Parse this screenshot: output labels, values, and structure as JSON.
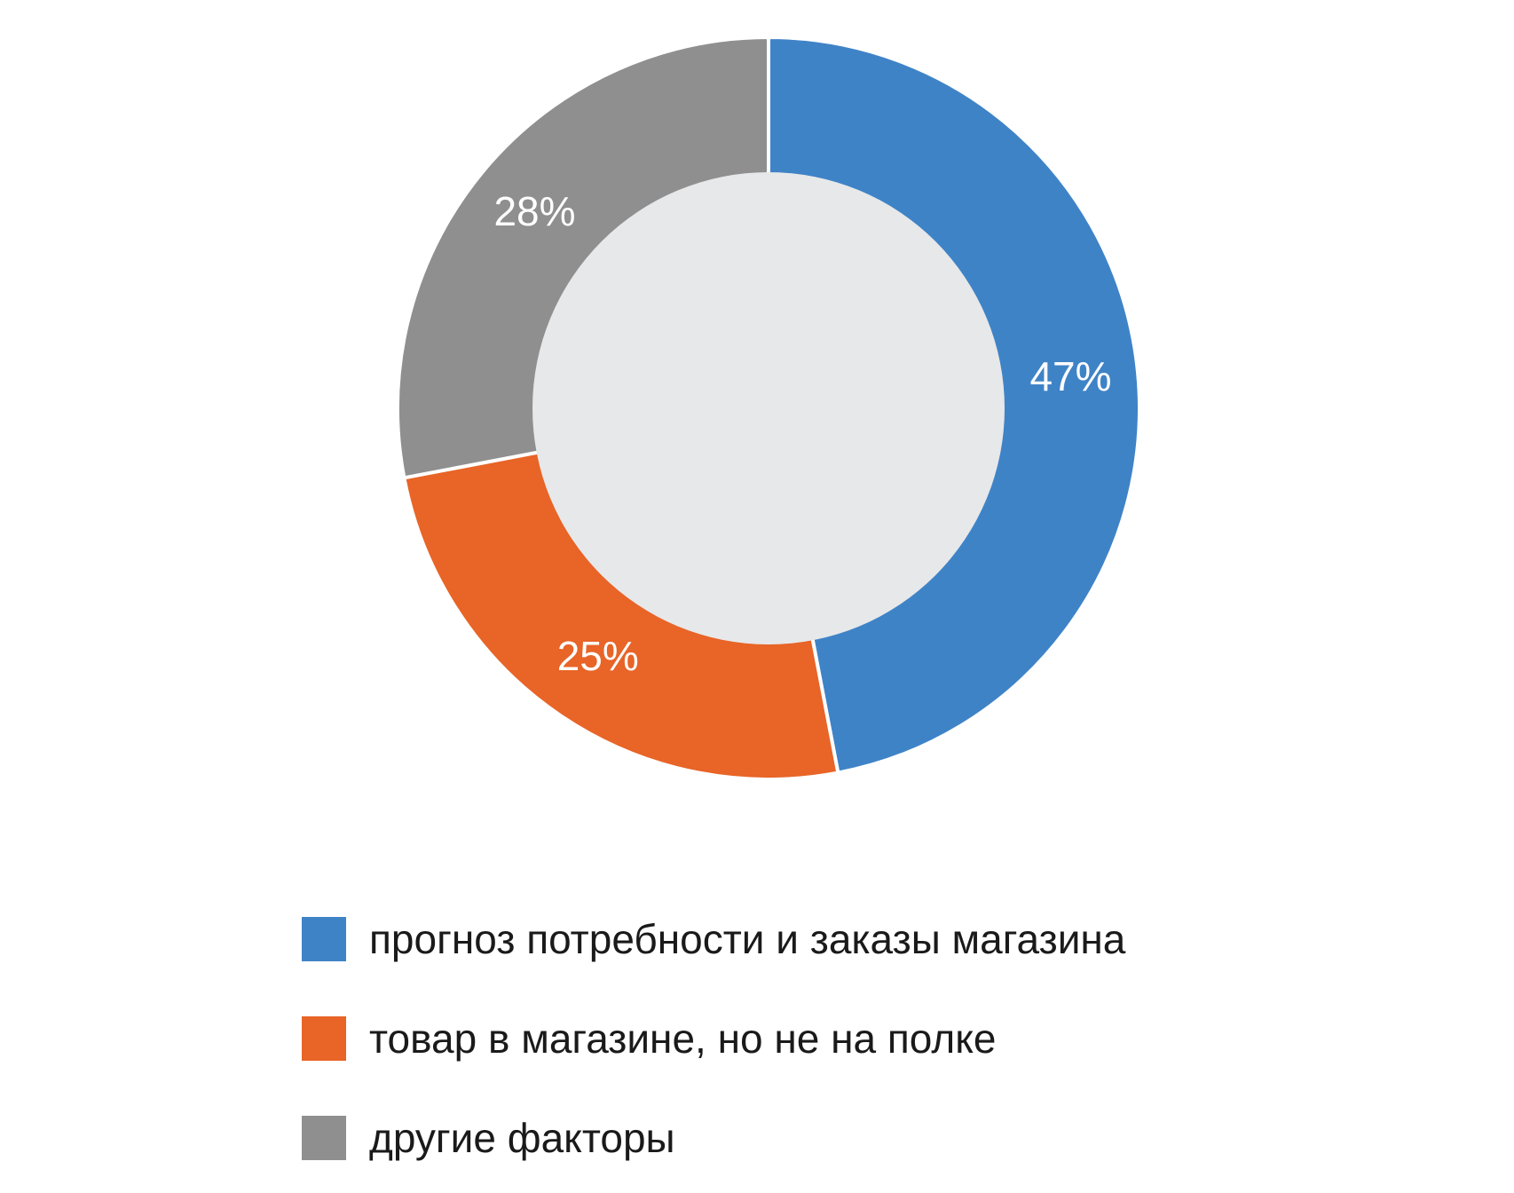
{
  "chart_data": {
    "type": "pie",
    "donut": true,
    "title": "",
    "categories": [
      "прогноз потребности и заказы магазина",
      "товар в магазине, но не на полке",
      "другие факторы"
    ],
    "values": [
      47,
      25,
      28
    ],
    "data_labels": [
      "47%",
      "25%",
      "28%"
    ],
    "colors": [
      "#3f83c7",
      "#e86427",
      "#8f8f8f"
    ],
    "hole_color": "#e7e8ea",
    "legend_position": "bottom"
  }
}
